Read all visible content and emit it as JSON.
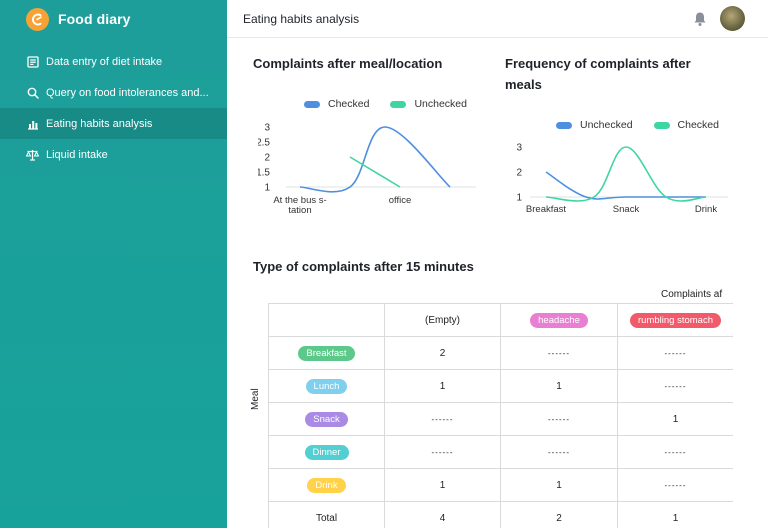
{
  "app": {
    "name": "Food diary",
    "brand_color": "#f7a234",
    "sidebar_color": "#1e9e9a"
  },
  "sidebar": {
    "items": [
      {
        "label": "Data entry of diet intake",
        "icon": "form-icon",
        "active": false
      },
      {
        "label": "Query on food intolerances and...",
        "icon": "search-icon",
        "active": false
      },
      {
        "label": "Eating habits analysis",
        "icon": "chart-icon",
        "active": true
      },
      {
        "label": "Liquid intake",
        "icon": "scale-icon",
        "active": false
      }
    ]
  },
  "header": {
    "title": "Eating habits analysis"
  },
  "charts": {
    "left": {
      "title": "Complaints after meal/location"
    },
    "right": {
      "title_line1": "Frequency of complaints after",
      "title_line2": "meals"
    }
  },
  "chart_data": [
    {
      "type": "line",
      "title": "Complaints after meal/location",
      "categories": [
        "At the bus s-tation",
        "office",
        ""
      ],
      "category_lines": [
        [
          "At the bus s-",
          "tation"
        ],
        [
          "office"
        ],
        [
          ""
        ]
      ],
      "x_positions": [
        0,
        1,
        1.5
      ],
      "yticks": [
        "1",
        "1.5",
        "2",
        "2.5",
        "3"
      ],
      "ylim": [
        1,
        3
      ],
      "legend": [
        "Checked",
        "Unchecked"
      ],
      "series": [
        {
          "name": "Checked",
          "color": "#4e8fe0",
          "points": [
            [
              0,
              1
            ],
            [
              0.5,
              1
            ],
            [
              0.85,
              3
            ],
            [
              1.5,
              1
            ]
          ]
        },
        {
          "name": "Unchecked",
          "color": "#3dd6a1",
          "points": [
            [
              0.5,
              2
            ],
            [
              1,
              1
            ]
          ]
        }
      ]
    },
    {
      "type": "line",
      "title": "Frequency of complaints after meals",
      "categories": [
        "Breakfast",
        "Snack",
        "Drink"
      ],
      "yticks": [
        "1",
        "2",
        "3"
      ],
      "ylim": [
        1,
        3
      ],
      "legend": [
        "Unchecked",
        "Checked"
      ],
      "series": [
        {
          "name": "Unchecked",
          "color": "#4e8fe0",
          "points": [
            [
              0,
              2
            ],
            [
              0.5,
              1
            ],
            [
              1,
              1
            ],
            [
              2,
              1
            ]
          ]
        },
        {
          "name": "Checked",
          "color": "#3dd6a1",
          "points": [
            [
              0,
              1
            ],
            [
              0.6,
              1
            ],
            [
              1,
              3
            ],
            [
              1.5,
              1
            ],
            [
              2,
              1
            ]
          ]
        }
      ]
    }
  ],
  "pivot": {
    "title": "Type of complaints after 15 minutes",
    "column_group_label": "Complaints af",
    "row_group_label": "Meal",
    "columns": [
      {
        "label": "(Empty)",
        "tag": false
      },
      {
        "label": "headache",
        "tag": true,
        "bg": "#e97fd3",
        "fg": "#ffffff"
      },
      {
        "label": "rumbling stomach",
        "tag": true,
        "bg": "#f25a6b",
        "fg": "#ffffff"
      }
    ],
    "rows": [
      {
        "label": "Breakfast",
        "bg": "#5cc98a",
        "fg": "#ffffff",
        "cells": [
          "2",
          "",
          ""
        ]
      },
      {
        "label": "Lunch",
        "bg": "#7fd0ef",
        "fg": "#ffffff",
        "cells": [
          "1",
          "1",
          ""
        ]
      },
      {
        "label": "Snack",
        "bg": "#a98be6",
        "fg": "#ffffff",
        "cells": [
          "",
          "",
          "1"
        ]
      },
      {
        "label": "Dinner",
        "bg": "#52cfd2",
        "fg": "#ffffff",
        "cells": [
          "",
          "",
          ""
        ]
      },
      {
        "label": "Drink",
        "bg": "#ffd24a",
        "fg": "#ffffff",
        "cells": [
          "1",
          "1",
          ""
        ]
      }
    ],
    "total": {
      "label": "Total",
      "cells": [
        "4",
        "2",
        "1"
      ]
    },
    "empty_placeholder": "------"
  }
}
